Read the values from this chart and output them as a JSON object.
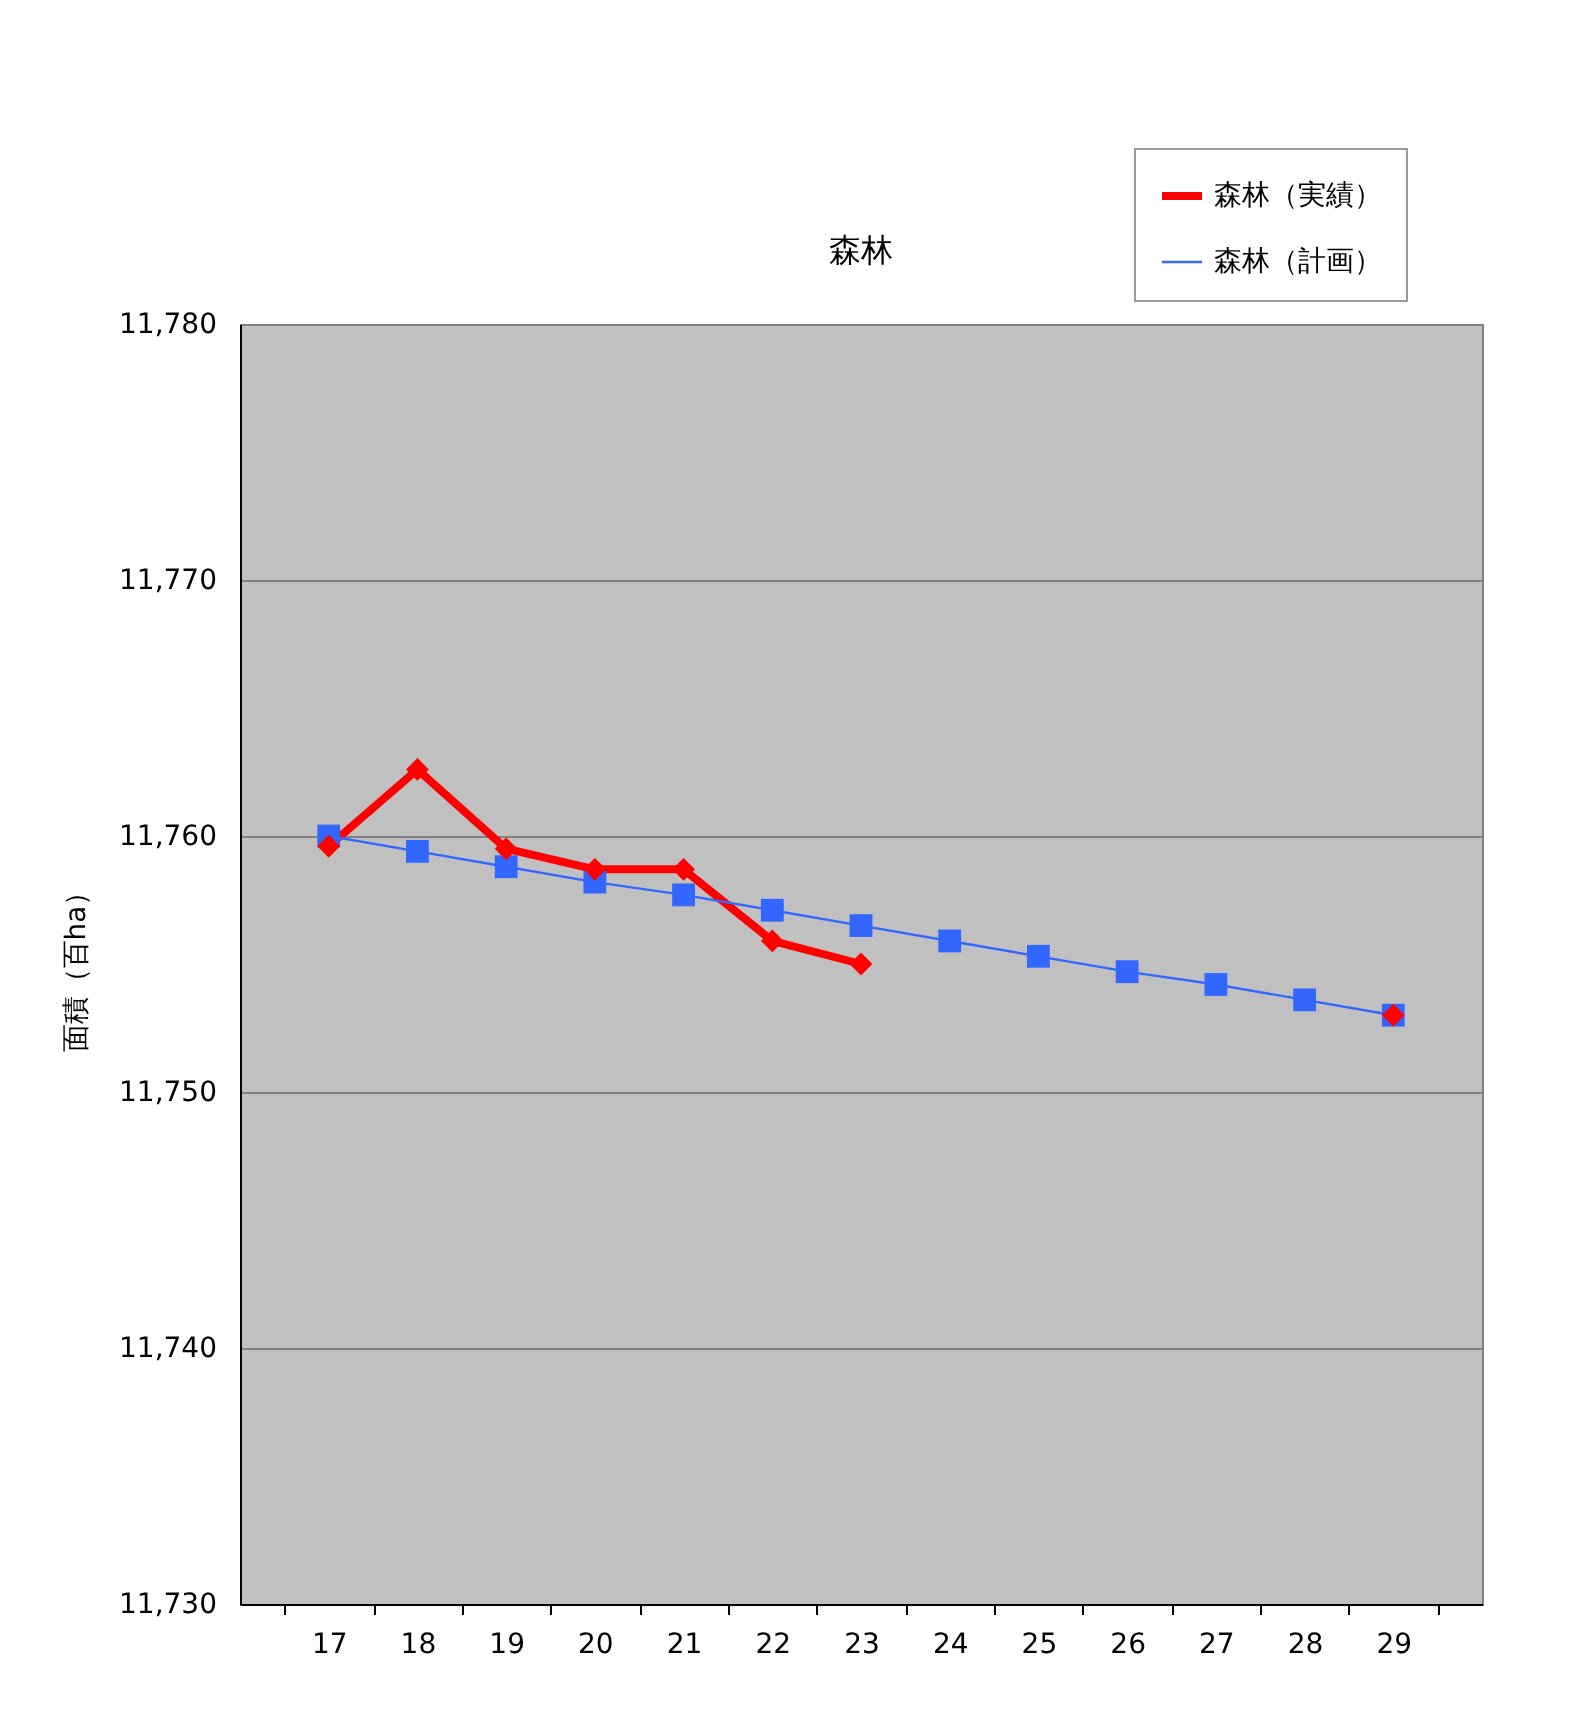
{
  "chart_data": {
    "type": "line",
    "title": "森林",
    "ylabel": "面積（百ha）",
    "categories": [
      "17",
      "18",
      "19",
      "20",
      "21",
      "22",
      "23",
      "24",
      "25",
      "26",
      "27",
      "28",
      "29"
    ],
    "series": [
      {
        "name": "森林（実績）",
        "color": "#ff0000",
        "marker": "diamond",
        "values": [
          11759.6,
          11762.6,
          11759.5,
          11758.7,
          11758.7,
          11755.9,
          11755.0,
          null,
          null,
          null,
          null,
          null,
          11753.0
        ]
      },
      {
        "name": "森林（計画）",
        "color": "#3366ff",
        "marker": "square",
        "values": [
          11760.0,
          11759.4,
          11758.8,
          11758.2,
          11757.7,
          11757.1,
          11756.5,
          11755.9,
          11755.3,
          11754.7,
          11754.2,
          11753.6,
          11753.0
        ]
      }
    ],
    "ylim": [
      11730,
      11780
    ],
    "yticks": [
      {
        "value": 11730,
        "label": "11,730"
      },
      {
        "value": 11740,
        "label": "11,740"
      },
      {
        "value": 11750,
        "label": "11,750"
      },
      {
        "value": 11760,
        "label": "11,760"
      },
      {
        "value": 11770,
        "label": "11,770"
      },
      {
        "value": 11780,
        "label": "11,780"
      }
    ],
    "grid": "y",
    "legend": "top right"
  }
}
